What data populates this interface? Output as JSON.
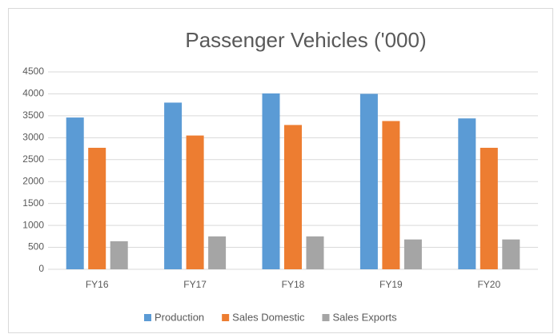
{
  "chart_data": {
    "type": "bar",
    "title": "Passenger Vehicles ('000)",
    "categories": [
      "FY16",
      "FY17",
      "FY18",
      "FY19",
      "FY20"
    ],
    "series": [
      {
        "name": "Production",
        "color": "#5b9bd5",
        "values": [
          3460,
          3800,
          4010,
          4000,
          3440
        ]
      },
      {
        "name": "Sales Domestic",
        "color": "#ed7d31",
        "values": [
          2770,
          3050,
          3290,
          3380,
          2770
        ]
      },
      {
        "name": "Sales Exports",
        "color": "#a5a5a5",
        "values": [
          640,
          750,
          750,
          680,
          680
        ]
      }
    ],
    "ylim": [
      0,
      4500
    ],
    "yticks": [
      0,
      500,
      1000,
      1500,
      2000,
      2500,
      3000,
      3500,
      4000,
      4500
    ],
    "grid": true,
    "legend": "bottom"
  }
}
